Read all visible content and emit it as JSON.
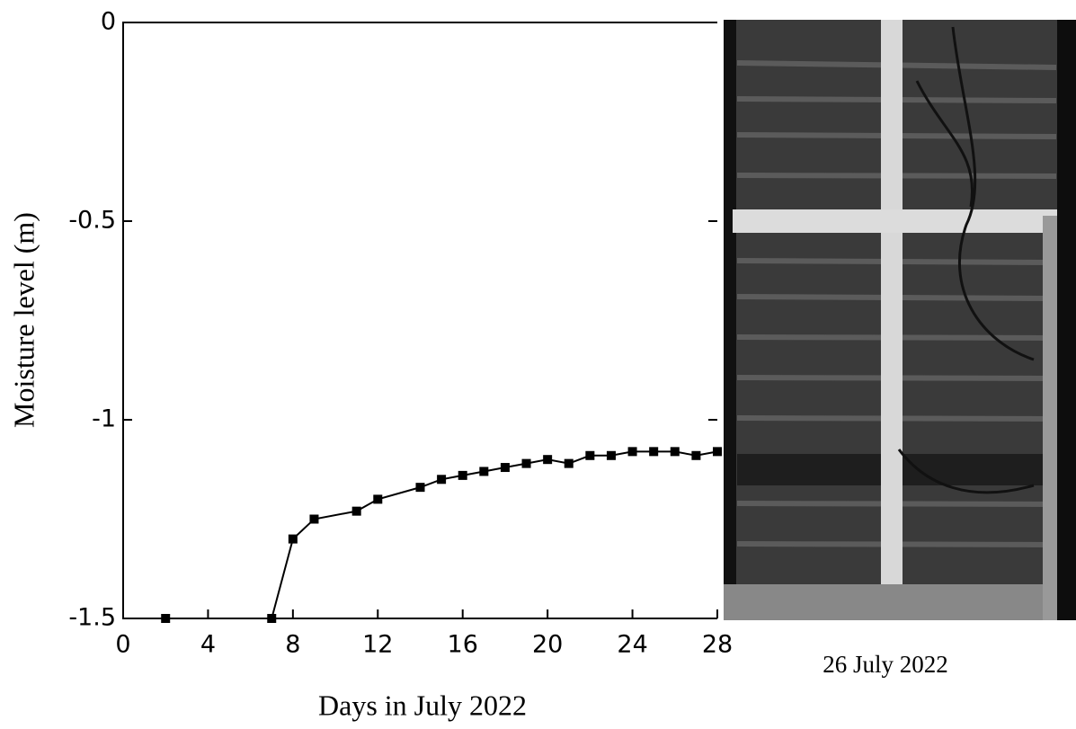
{
  "chart_data": {
    "type": "line",
    "xlabel": "Days in July 2022",
    "ylabel": "Moisture level (m)",
    "caption": "26 July 2022",
    "color": "#000000",
    "x": [
      2,
      7,
      8,
      9,
      11,
      12,
      14,
      15,
      16,
      17,
      18,
      19,
      20,
      21,
      22,
      23,
      24,
      25,
      26,
      27,
      28
    ],
    "values": [
      -1.5,
      -1.5,
      -1.3,
      -1.25,
      -1.23,
      -1.2,
      -1.17,
      -1.15,
      -1.14,
      -1.13,
      -1.12,
      -1.11,
      -1.1,
      -1.11,
      -1.09,
      -1.09,
      -1.08,
      -1.08,
      -1.08,
      -1.09,
      -1.08
    ],
    "xlim": [
      0,
      28
    ],
    "xticks": [
      0,
      4,
      8,
      12,
      16,
      20,
      24,
      28
    ],
    "ylim": [
      -1.5,
      0
    ],
    "yticks": [
      0,
      -0.5,
      -1,
      -1.5
    ]
  }
}
